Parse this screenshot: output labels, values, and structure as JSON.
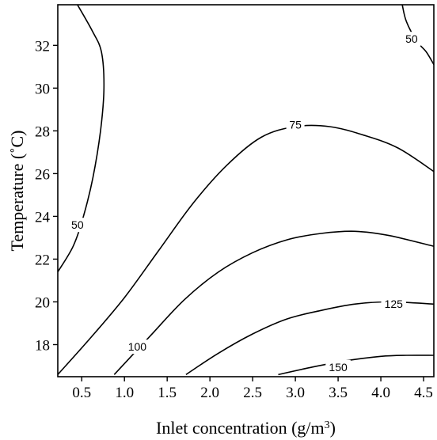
{
  "chart_data": {
    "type": "contour",
    "title": "",
    "xlabel": "Inlet concentration (g/m",
    "xlabel_sup": "3",
    "xlabel_end": ")",
    "ylabel": "Temperature (˚C)",
    "xlim": [
      0.22,
      4.62
    ],
    "ylim": [
      16.5,
      33.9
    ],
    "x_ticks": [
      0.5,
      1.0,
      1.5,
      2.0,
      2.5,
      3.0,
      3.5,
      4.0,
      4.5
    ],
    "x_tick_labels": [
      "0.5",
      "1.0",
      "1.5",
      "2.0",
      "2.5",
      "3.0",
      "3.5",
      "4.0",
      "4.5"
    ],
    "y_ticks": [
      18,
      20,
      22,
      24,
      26,
      28,
      30,
      32
    ],
    "y_tick_labels": [
      "18",
      "20",
      "22",
      "24",
      "26",
      "28",
      "30",
      "32"
    ],
    "grid": false,
    "contours": [
      {
        "level": 50,
        "label": "50",
        "label_at": [
          0.45,
          23.6
        ],
        "points": [
          [
            0.22,
            21.4
          ],
          [
            0.4,
            22.6
          ],
          [
            0.52,
            24.0
          ],
          [
            0.63,
            25.8
          ],
          [
            0.72,
            28.0
          ],
          [
            0.76,
            30.0
          ],
          [
            0.73,
            31.7
          ],
          [
            0.62,
            32.7
          ],
          [
            0.45,
            33.9
          ]
        ]
      },
      {
        "level": 50,
        "label": "50",
        "label_at": [
          4.36,
          32.3
        ],
        "points": [
          [
            4.25,
            33.9
          ],
          [
            4.3,
            33.1
          ],
          [
            4.42,
            32.2
          ],
          [
            4.53,
            31.7
          ],
          [
            4.62,
            31.1
          ]
        ]
      },
      {
        "level": 75,
        "label": "75",
        "label_at": [
          3.0,
          28.3
        ],
        "points": [
          [
            0.22,
            16.6
          ],
          [
            0.6,
            18.3
          ],
          [
            1.0,
            20.2
          ],
          [
            1.4,
            22.4
          ],
          [
            1.8,
            24.6
          ],
          [
            2.2,
            26.4
          ],
          [
            2.6,
            27.7
          ],
          [
            3.0,
            28.2
          ],
          [
            3.4,
            28.2
          ],
          [
            3.8,
            27.8
          ],
          [
            4.2,
            27.2
          ],
          [
            4.62,
            26.1
          ]
        ]
      },
      {
        "level": 100,
        "label": "100",
        "label_at": [
          1.15,
          17.9
        ],
        "points": [
          [
            0.88,
            16.6
          ],
          [
            1.3,
            18.4
          ],
          [
            1.7,
            20.1
          ],
          [
            2.1,
            21.4
          ],
          [
            2.5,
            22.3
          ],
          [
            2.9,
            22.9
          ],
          [
            3.3,
            23.2
          ],
          [
            3.7,
            23.3
          ],
          [
            4.1,
            23.1
          ],
          [
            4.62,
            22.6
          ]
        ]
      },
      {
        "level": 125,
        "label": "125",
        "label_at": [
          4.15,
          19.9
        ],
        "points": [
          [
            1.72,
            16.6
          ],
          [
            2.1,
            17.6
          ],
          [
            2.5,
            18.5
          ],
          [
            2.9,
            19.2
          ],
          [
            3.3,
            19.6
          ],
          [
            3.7,
            19.9
          ],
          [
            4.1,
            20.0
          ],
          [
            4.62,
            19.9
          ]
        ]
      },
      {
        "level": 150,
        "label": "150",
        "label_at": [
          3.5,
          16.95
        ],
        "points": [
          [
            2.8,
            16.6
          ],
          [
            3.2,
            16.95
          ],
          [
            3.6,
            17.25
          ],
          [
            4.0,
            17.45
          ],
          [
            4.3,
            17.5
          ],
          [
            4.62,
            17.5
          ]
        ]
      }
    ]
  }
}
